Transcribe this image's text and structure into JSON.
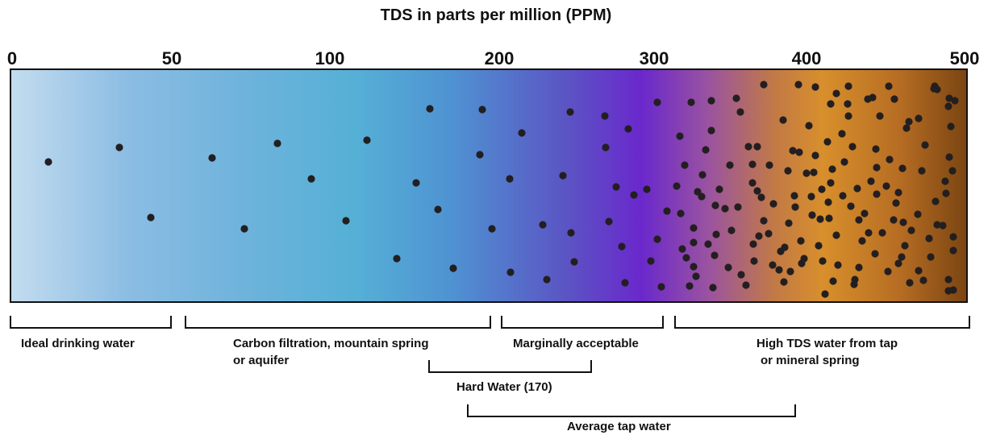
{
  "title": "TDS in parts per million (PPM)",
  "scale": {
    "ticks": [
      "0",
      "50",
      "100",
      "200",
      "300",
      "400",
      "500"
    ]
  },
  "ranges": {
    "ideal": "Ideal drinking water",
    "carbon_line1": "Carbon filtration, mountain spring",
    "carbon_line2": "or aquifer",
    "marginal": "Marginally acceptable",
    "high_line1": "High TDS water from tap",
    "high_line2": "or mineral spring",
    "hard": "Hard Water (170)",
    "average": "Average tap water"
  },
  "colors": {
    "light_blue": "#c3dcef",
    "cyan": "#55b0d6",
    "purple": "#6a28cc",
    "orange": "#d88f2c",
    "brown": "#7b4512",
    "dot": "#231f20"
  }
}
